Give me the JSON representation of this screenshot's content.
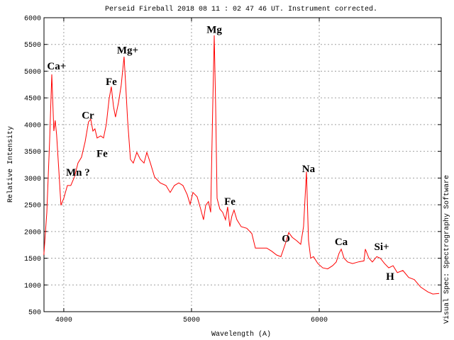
{
  "chart_data": {
    "type": "line",
    "title": "Perseid Fireball 2018 08 11 : 02 47 46 UT. Instrument corrected.",
    "x_label": "Wavelength (A)",
    "y_label": "Relative Intensity",
    "side_note": "Visual Spec: Spectrography Software",
    "color": "#ff0000",
    "grid": true,
    "xlim": [
      3845,
      6955
    ],
    "ylim": [
      500,
      6000
    ],
    "xticks": [
      4000,
      5000,
      6000
    ],
    "yticks": [
      500,
      1000,
      1500,
      2000,
      2500,
      3000,
      3500,
      4000,
      4500,
      5000,
      5500,
      6000
    ],
    "x": [
      3844,
      3867,
      3889,
      3906,
      3922,
      3933,
      3944,
      3961,
      3978,
      4000,
      4028,
      4055,
      4083,
      4111,
      4139,
      4167,
      4194,
      4211,
      4228,
      4244,
      4261,
      4289,
      4311,
      4333,
      4355,
      4372,
      4389,
      4405,
      4428,
      4450,
      4472,
      4483,
      4500,
      4522,
      4544,
      4572,
      4600,
      4628,
      4650,
      4678,
      4711,
      4755,
      4800,
      4833,
      4866,
      4900,
      4933,
      4966,
      4989,
      5011,
      5044,
      5072,
      5094,
      5111,
      5133,
      5150,
      5166,
      5178,
      5189,
      5200,
      5222,
      5244,
      5266,
      5283,
      5300,
      5316,
      5333,
      5355,
      5389,
      5433,
      5472,
      5500,
      5544,
      5589,
      5628,
      5666,
      5700,
      5733,
      5761,
      5789,
      5822,
      5855,
      5877,
      5900,
      5916,
      5933,
      5955,
      5989,
      6027,
      6066,
      6105,
      6133,
      6155,
      6172,
      6194,
      6222,
      6261,
      6305,
      6350,
      6361,
      6389,
      6416,
      6450,
      6478,
      6511,
      6544,
      6578,
      6611,
      6655,
      6700,
      6744,
      6794,
      6850,
      6889,
      6939
    ],
    "values": [
      1560,
      2355,
      3680,
      4940,
      3880,
      4080,
      3810,
      3150,
      2490,
      2620,
      2860,
      2860,
      3020,
      3280,
      3390,
      3680,
      4050,
      4100,
      3880,
      3920,
      3750,
      3790,
      3750,
      4010,
      4480,
      4710,
      4340,
      4140,
      4410,
      4740,
      5270,
      4810,
      4080,
      3350,
      3280,
      3480,
      3350,
      3280,
      3480,
      3280,
      3020,
      2910,
      2860,
      2730,
      2860,
      2910,
      2860,
      2690,
      2510,
      2730,
      2650,
      2420,
      2220,
      2490,
      2560,
      2360,
      4340,
      5670,
      4340,
      2620,
      2420,
      2360,
      2220,
      2460,
      2090,
      2290,
      2400,
      2220,
      2090,
      2060,
      1960,
      1690,
      1690,
      1690,
      1630,
      1560,
      1530,
      1760,
      1980,
      1890,
      1830,
      1760,
      2090,
      3120,
      1830,
      1500,
      1530,
      1400,
      1320,
      1300,
      1360,
      1430,
      1590,
      1670,
      1500,
      1430,
      1400,
      1430,
      1450,
      1670,
      1500,
      1430,
      1530,
      1500,
      1400,
      1320,
      1360,
      1230,
      1270,
      1140,
      1100,
      960,
      870,
      830,
      840
    ],
    "annotations": [
      {
        "text": "Ca+",
        "x": 3944,
        "y": 5100
      },
      {
        "text": "Mg+",
        "x": 4500,
        "y": 5400
      },
      {
        "text": "Fe",
        "x": 4372,
        "y": 4810
      },
      {
        "text": "Cr",
        "x": 4189,
        "y": 4180
      },
      {
        "text": "Fe",
        "x": 4300,
        "y": 3460
      },
      {
        "text": "Mn ?",
        "x": 4111,
        "y": 3110
      },
      {
        "text": "Mg",
        "x": 5178,
        "y": 5780
      },
      {
        "text": "Fe",
        "x": 5300,
        "y": 2570
      },
      {
        "text": "O",
        "x": 5739,
        "y": 1870
      },
      {
        "text": "Na",
        "x": 5916,
        "y": 3180
      },
      {
        "text": "Ca",
        "x": 6172,
        "y": 1810
      },
      {
        "text": "Si+",
        "x": 6489,
        "y": 1720
      },
      {
        "text": "H",
        "x": 6555,
        "y": 1160
      }
    ]
  }
}
